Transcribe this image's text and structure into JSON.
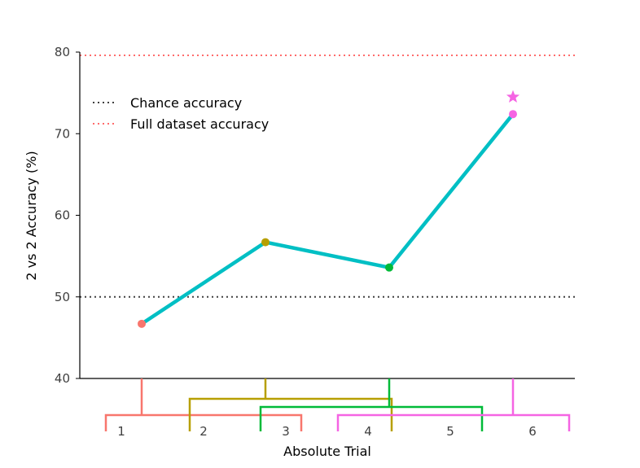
{
  "chart_data": {
    "type": "line",
    "title": "",
    "xlabel": "Absolute Trial",
    "ylabel": "2 vs 2 Accuracy (%)",
    "ylim": [
      40,
      80
    ],
    "yticks": [
      40,
      50,
      60,
      70,
      80
    ],
    "xlim": [
      0.5,
      6.5
    ],
    "trial_labels": [
      "1",
      "2",
      "3",
      "4",
      "5",
      "6"
    ],
    "series": [
      {
        "color": "#00bfc4",
        "points": [
          {
            "x": 1.25,
            "y": 46.7,
            "color": "#f8766d"
          },
          {
            "x": 2.75,
            "y": 56.7,
            "color": "#b79f00"
          },
          {
            "x": 4.25,
            "y": 53.6,
            "color": "#00ba38"
          },
          {
            "x": 5.75,
            "y": 72.4,
            "color": "#f564e3"
          }
        ]
      }
    ],
    "star_marker": {
      "x": 5.75,
      "y": 74.5,
      "color": "#f564e3"
    },
    "reference_lines": [
      {
        "name": "Chance accuracy",
        "y": 50,
        "color": "#404040"
      },
      {
        "name": "Full dataset accuracy",
        "y": 79.6,
        "color": "#ff6b6b"
      }
    ],
    "trial_groups": [
      {
        "start": 1,
        "end": 3,
        "color": "#f8766d"
      },
      {
        "start": 2,
        "end": 4,
        "color": "#b79f00"
      },
      {
        "start": 3,
        "end": 5,
        "color": "#00ba38"
      },
      {
        "start": 4,
        "end": 6,
        "color": "#f564e3"
      }
    ],
    "legend": {
      "placement": "top-left",
      "entries": [
        "Chance accuracy",
        "Full dataset accuracy"
      ]
    },
    "grid": false
  }
}
